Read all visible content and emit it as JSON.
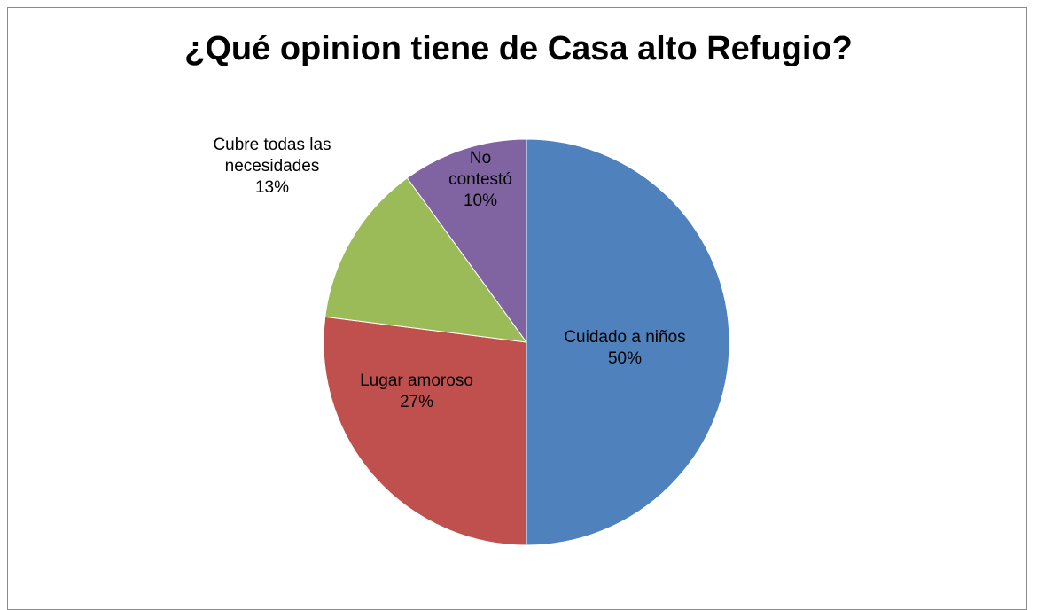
{
  "chart_data": {
    "type": "pie",
    "title": "¿Qué opinion tiene de Casa alto Refugio?",
    "slices": [
      {
        "label": "Cuidado a niños",
        "value": 50,
        "value_label": "50%",
        "color": "#4F81BD"
      },
      {
        "label": "Lugar amoroso",
        "value": 27,
        "value_label": "27%",
        "color": "#C0504D"
      },
      {
        "label": "Cubre todas las necesidades",
        "value": 13,
        "value_label": "13%",
        "color": "#9BBB59"
      },
      {
        "label": "No contestó",
        "value": 10,
        "value_label": "10%",
        "color": "#8064A2"
      }
    ],
    "data_label_lines": [
      [
        "Cuidado a niños",
        "50%"
      ],
      [
        "Lugar amoroso",
        "27%"
      ],
      [
        "Cubre todas las",
        "necesidades",
        "13%"
      ],
      [
        "No",
        "contestó",
        "10%"
      ]
    ],
    "start": "12 o'clock",
    "direction": "clockwise",
    "legend": "none"
  }
}
